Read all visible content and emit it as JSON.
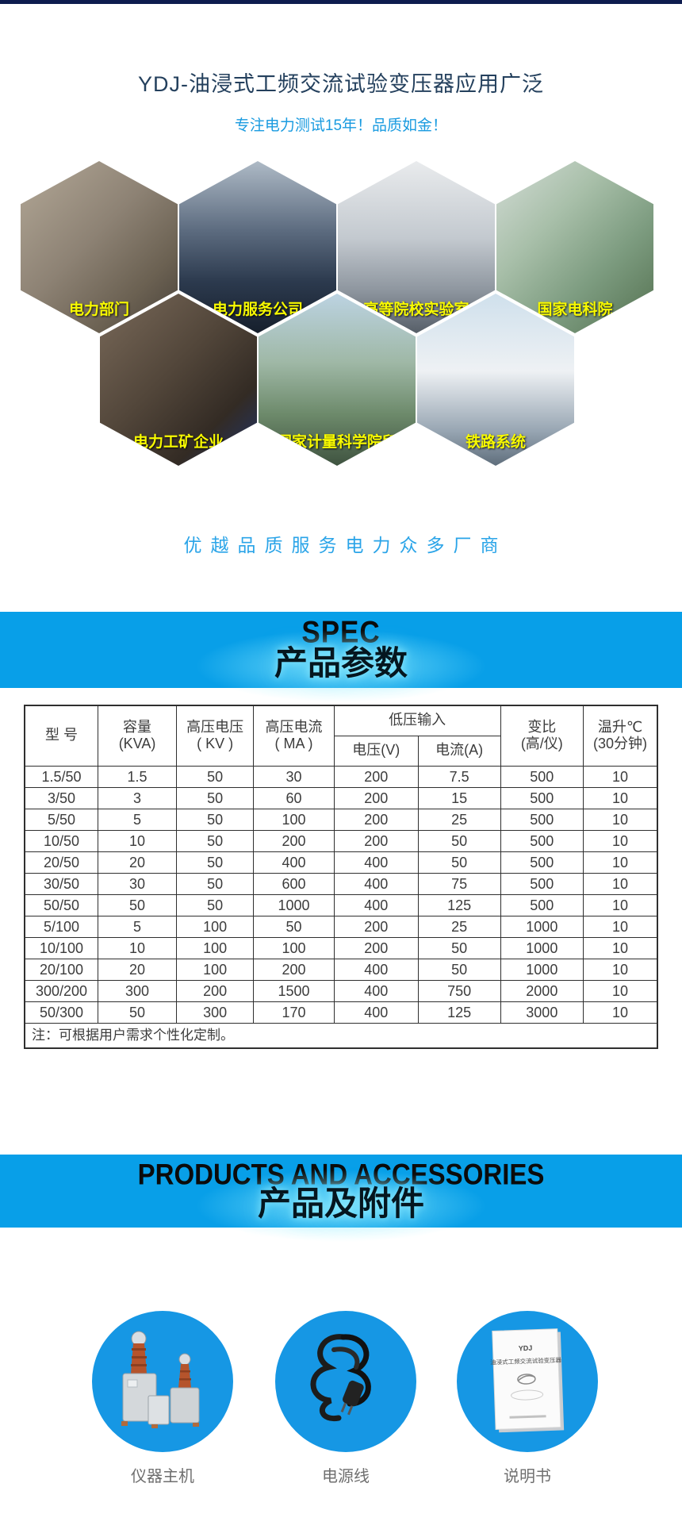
{
  "colors": {
    "topbar_navy": "#0e1c4e",
    "banner_blue": "#089fe8",
    "accent_blue": "#1a9be0",
    "slogan_blue": "#2aa4e8",
    "circle_blue": "#1697e4",
    "hex_label_yellow": "#f8fa00"
  },
  "header": {
    "title": "YDJ-油浸式工频交流试验变压器应用广泛",
    "subtitle": "专注电力测试15年！品质如金！"
  },
  "hexagons": [
    {
      "label": "电力部门"
    },
    {
      "label": "电力服务公司"
    },
    {
      "label": "高等院校实验室"
    },
    {
      "label": "国家电科院"
    },
    {
      "label": "电力工矿企业"
    },
    {
      "label": "国家计量科学院所"
    },
    {
      "label": "铁路系统"
    }
  ],
  "slogan": "优越品质服务电力众多厂商",
  "spec_banner": {
    "en": "SPEC",
    "zh": "产品参数"
  },
  "table": {
    "header": {
      "model": "型  号",
      "capacity": {
        "l1": "容量",
        "l2": "(KVA)"
      },
      "hv_voltage": {
        "l1": "高压电压",
        "l2": "( KV )"
      },
      "hv_current": {
        "l1": "高压电流",
        "l2": "( MA )"
      },
      "lv_group": "低压输入",
      "lv_voltage": "电压(V)",
      "lv_current": "电流(A)",
      "ratio": {
        "l1": "变比",
        "l2": "(高/仪)"
      },
      "temp_rise": {
        "l1": "温升℃",
        "l2": "(30分钟)"
      }
    },
    "rows": [
      [
        "1.5/50",
        "1.5",
        "50",
        "30",
        "200",
        "7.5",
        "500",
        "10"
      ],
      [
        "3/50",
        "3",
        "50",
        "60",
        "200",
        "15",
        "500",
        "10"
      ],
      [
        "5/50",
        "5",
        "50",
        "100",
        "200",
        "25",
        "500",
        "10"
      ],
      [
        "10/50",
        "10",
        "50",
        "200",
        "200",
        "50",
        "500",
        "10"
      ],
      [
        "20/50",
        "20",
        "50",
        "400",
        "400",
        "50",
        "500",
        "10"
      ],
      [
        "30/50",
        "30",
        "50",
        "600",
        "400",
        "75",
        "500",
        "10"
      ],
      [
        "50/50",
        "50",
        "50",
        "1000",
        "400",
        "125",
        "500",
        "10"
      ],
      [
        "5/100",
        "5",
        "100",
        "50",
        "200",
        "25",
        "1000",
        "10"
      ],
      [
        "10/100",
        "10",
        "100",
        "100",
        "200",
        "50",
        "1000",
        "10"
      ],
      [
        "20/100",
        "20",
        "100",
        "200",
        "400",
        "50",
        "1000",
        "10"
      ],
      [
        "300/200",
        "300",
        "200",
        "1500",
        "400",
        "750",
        "2000",
        "10"
      ],
      [
        "50/300",
        "50",
        "300",
        "170",
        "400",
        "125",
        "3000",
        "10"
      ]
    ],
    "note": "注：可根据用户需求个性化定制。"
  },
  "products_banner": {
    "en": "PRODUCTS AND ACCESSORIES",
    "zh": "产品及附件"
  },
  "products": [
    {
      "label": "仪器主机"
    },
    {
      "label": "电源线"
    },
    {
      "label": "说明书",
      "cover_line1": "YDJ",
      "cover_line2": "油浸式工频交流试验变压器"
    }
  ]
}
